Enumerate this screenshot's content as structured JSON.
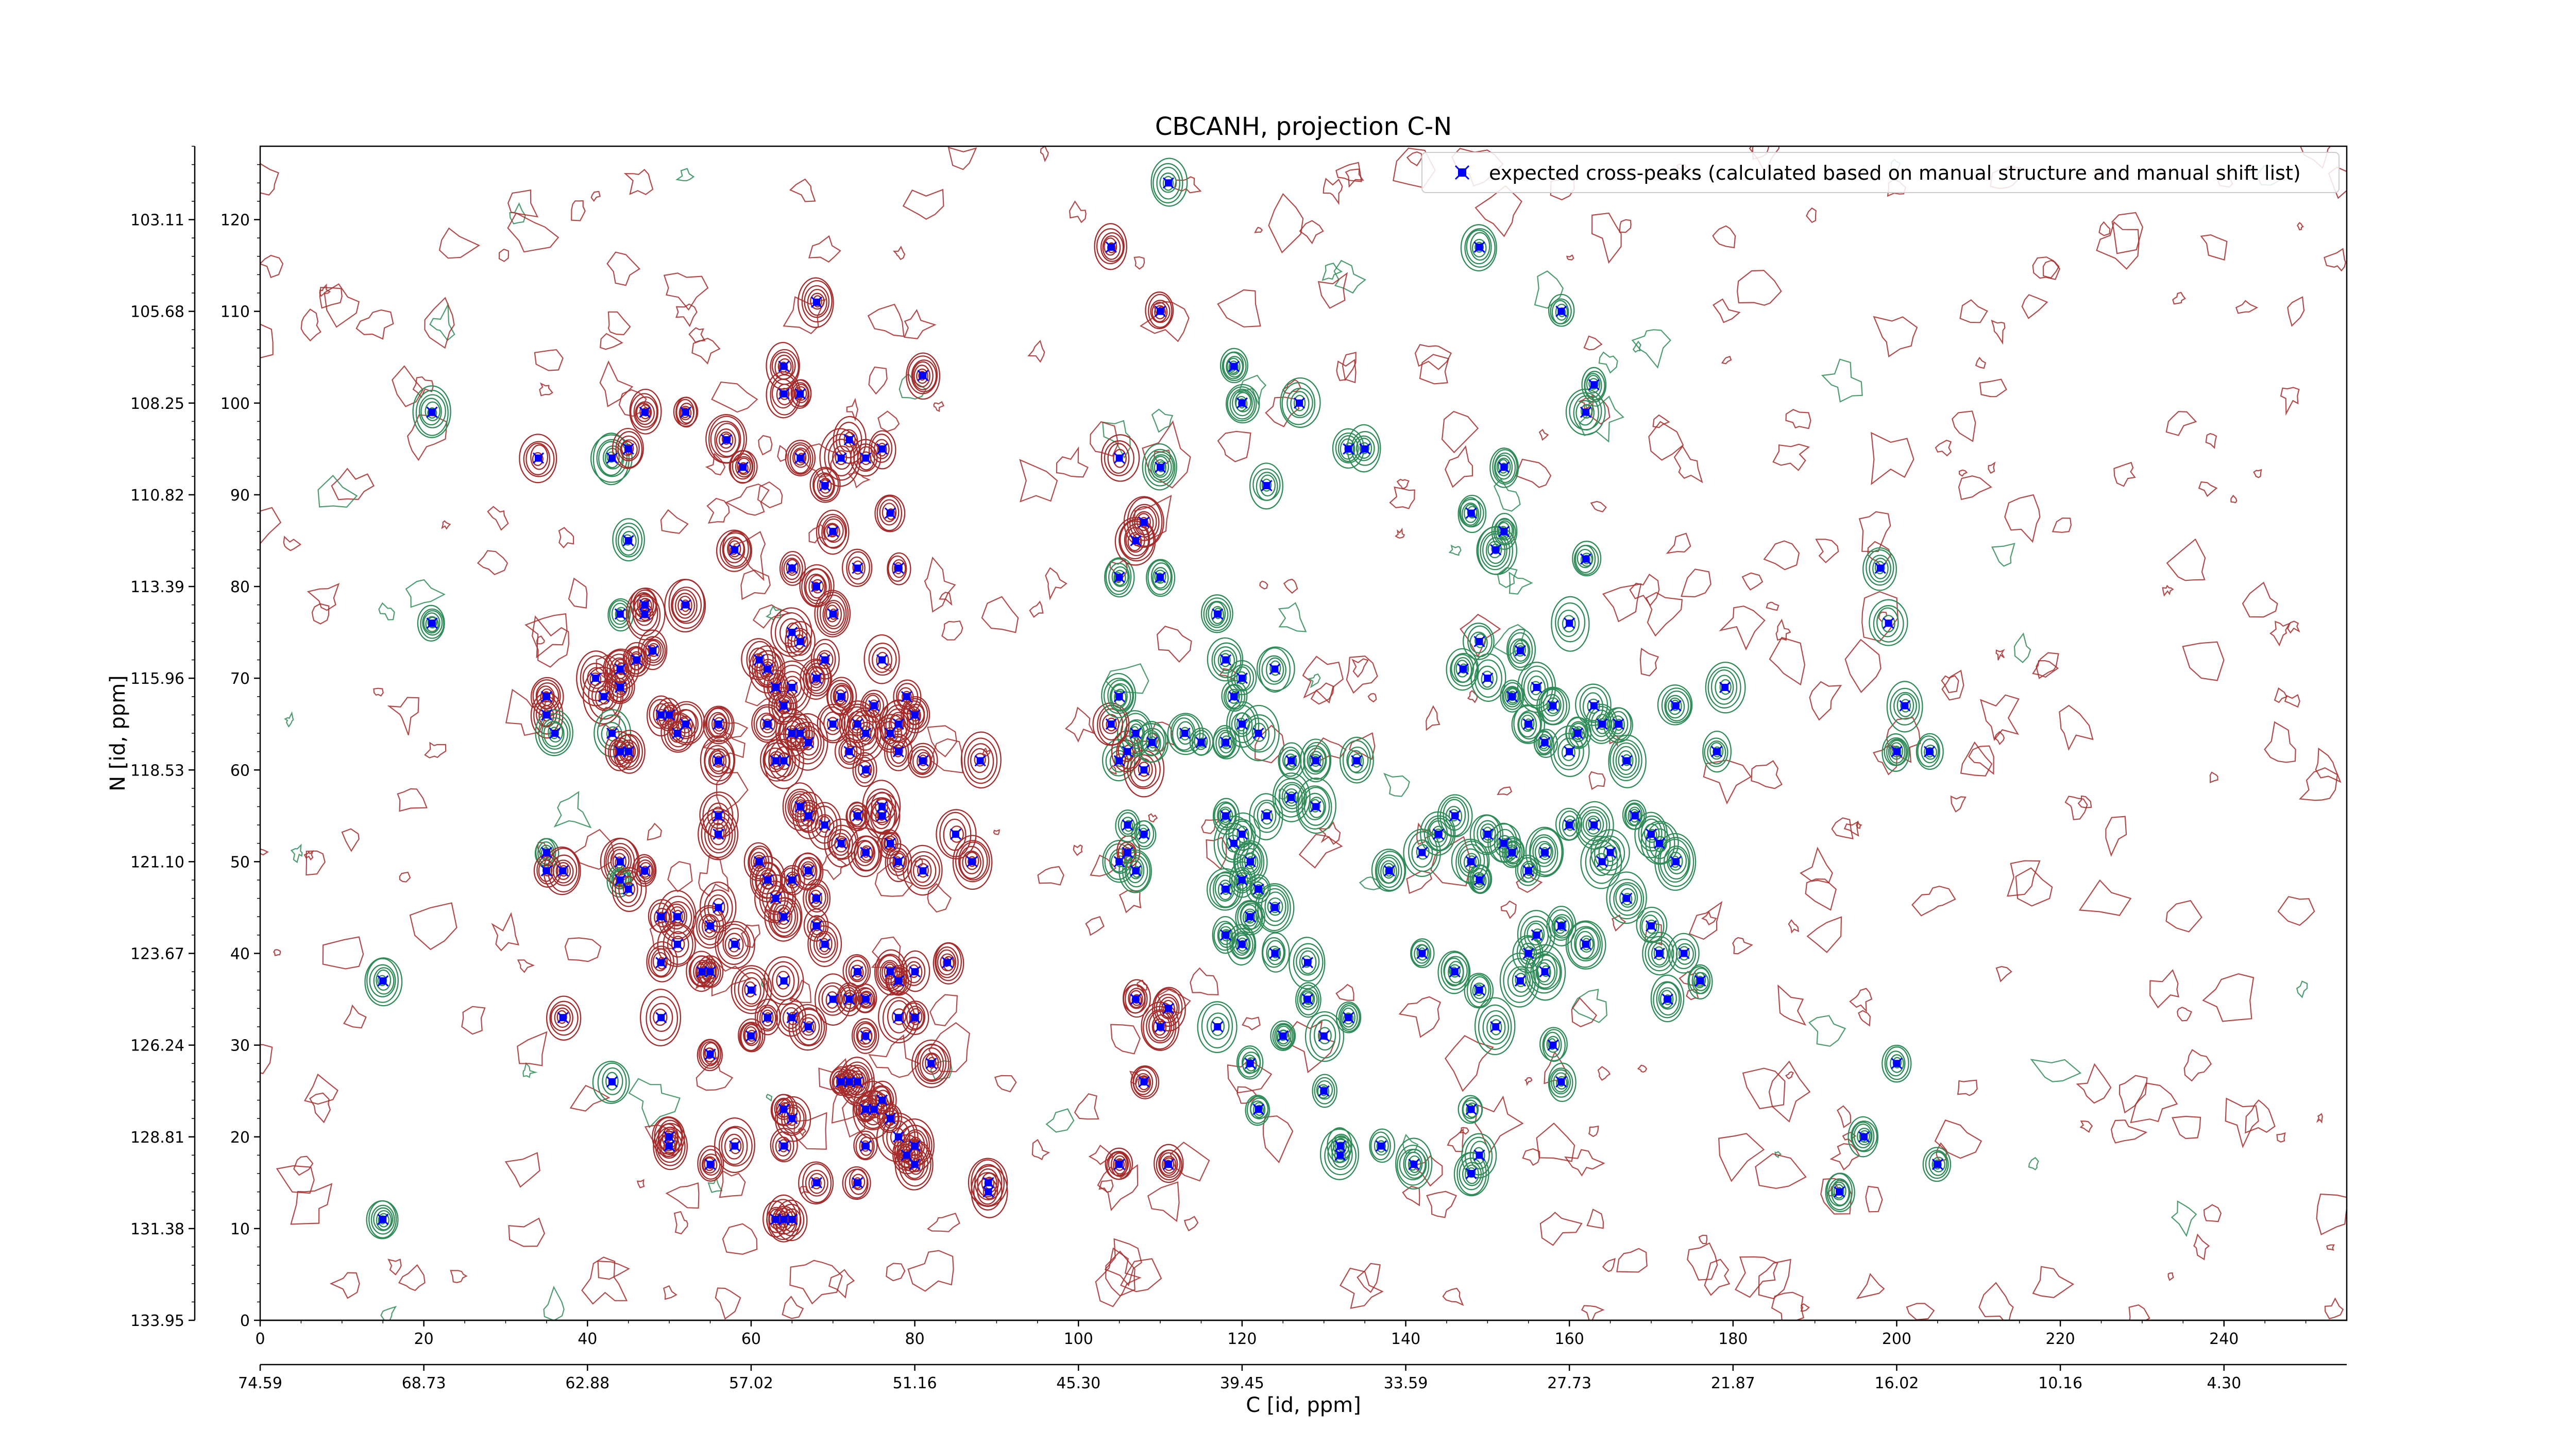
{
  "chart_data": {
    "type": "scatter",
    "title": "CBCANH, projection C-N",
    "xlabel": "C [id, ppm]",
    "ylabel": "N [id, ppm]",
    "grid": false,
    "legend_placement": "top-right",
    "x_index_ticks": [
      "0",
      "20",
      "40",
      "60",
      "80",
      "100",
      "120",
      "140",
      "160",
      "180",
      "200",
      "220",
      "240"
    ],
    "x_ppm_ticks": [
      "74.59",
      "68.73",
      "62.88",
      "57.02",
      "51.16",
      "45.30",
      "39.45",
      "33.59",
      "27.73",
      "21.87",
      "16.02",
      "10.16",
      "4.30"
    ],
    "y_index_ticks": [
      "0",
      "10",
      "20",
      "30",
      "40",
      "50",
      "60",
      "70",
      "80",
      "90",
      "100",
      "110",
      "120"
    ],
    "y_ppm_ticks": [
      "133.95",
      "131.38",
      "128.81",
      "126.24",
      "123.67",
      "121.10",
      "118.53",
      "115.96",
      "113.39",
      "110.82",
      "108.25",
      "105.68",
      "103.11"
    ],
    "xlim": [
      0,
      255
    ],
    "ylim": [
      0,
      128
    ],
    "contour_colors": {
      "positive": "#a52a2a",
      "negative": "#2e8b57"
    },
    "series": [
      {
        "name": "expected cross-peaks (calculated based on manual structure and manual shift list)",
        "color": "#0000ff",
        "marker": "x",
        "points": [
          [
            21,
            99
          ],
          [
            34,
            94
          ],
          [
            43,
            94
          ],
          [
            45,
            95
          ],
          [
            47,
            99
          ],
          [
            52,
            99
          ],
          [
            57,
            96
          ],
          [
            64,
            101
          ],
          [
            66,
            101
          ],
          [
            66,
            94
          ],
          [
            68,
            111
          ],
          [
            69,
            91
          ],
          [
            71,
            94
          ],
          [
            72,
            96
          ],
          [
            74,
            94
          ],
          [
            76,
            95
          ],
          [
            81,
            103
          ],
          [
            64,
            104
          ],
          [
            70,
            86
          ],
          [
            73,
            82
          ],
          [
            78,
            82
          ],
          [
            77,
            88
          ],
          [
            58,
            84
          ],
          [
            45,
            85
          ],
          [
            44,
            77
          ],
          [
            47,
            78
          ],
          [
            52,
            78
          ],
          [
            65,
            82
          ],
          [
            68,
            80
          ],
          [
            21,
            76
          ],
          [
            35,
            68
          ],
          [
            35,
            66
          ],
          [
            36,
            64
          ],
          [
            41,
            70
          ],
          [
            42,
            68
          ],
          [
            44,
            69
          ],
          [
            44,
            71
          ],
          [
            43,
            64
          ],
          [
            44,
            62
          ],
          [
            45,
            62
          ],
          [
            46,
            72
          ],
          [
            47,
            77
          ],
          [
            48,
            73
          ],
          [
            49,
            66
          ],
          [
            50,
            66
          ],
          [
            51,
            64
          ],
          [
            52,
            65
          ],
          [
            56,
            65
          ],
          [
            56,
            61
          ],
          [
            56,
            55
          ],
          [
            56,
            53
          ],
          [
            61,
            72
          ],
          [
            62,
            71
          ],
          [
            63,
            69
          ],
          [
            64,
            67
          ],
          [
            65,
            69
          ],
          [
            65,
            64
          ],
          [
            66,
            64
          ],
          [
            67,
            63
          ],
          [
            68,
            70
          ],
          [
            69,
            72
          ],
          [
            70,
            65
          ],
          [
            71,
            68
          ],
          [
            72,
            62
          ],
          [
            73,
            65
          ],
          [
            74,
            64
          ],
          [
            75,
            67
          ],
          [
            76,
            72
          ],
          [
            77,
            64
          ],
          [
            78,
            62
          ],
          [
            79,
            68
          ],
          [
            80,
            66
          ],
          [
            65,
            75
          ],
          [
            66,
            74
          ],
          [
            70,
            77
          ],
          [
            62,
            65
          ],
          [
            64,
            61
          ],
          [
            63,
            61
          ],
          [
            74,
            60
          ],
          [
            76,
            56
          ],
          [
            78,
            65
          ],
          [
            81,
            61
          ],
          [
            88,
            61
          ],
          [
            66,
            56
          ],
          [
            67,
            55
          ],
          [
            69,
            54
          ],
          [
            71,
            52
          ],
          [
            73,
            55
          ],
          [
            74,
            51
          ],
          [
            76,
            55
          ],
          [
            77,
            52
          ],
          [
            78,
            50
          ],
          [
            81,
            49
          ],
          [
            85,
            53
          ],
          [
            87,
            50
          ],
          [
            61,
            50
          ],
          [
            62,
            48
          ],
          [
            63,
            46
          ],
          [
            64,
            44
          ],
          [
            65,
            48
          ],
          [
            67,
            49
          ],
          [
            68,
            46
          ],
          [
            68,
            43
          ],
          [
            69,
            41
          ],
          [
            73,
            38
          ],
          [
            74,
            35
          ],
          [
            77,
            38
          ],
          [
            78,
            37
          ],
          [
            80,
            38
          ],
          [
            84,
            39
          ],
          [
            35,
            51
          ],
          [
            35,
            49
          ],
          [
            37,
            49
          ],
          [
            44,
            50
          ],
          [
            44,
            48
          ],
          [
            45,
            47
          ],
          [
            47,
            49
          ],
          [
            49,
            44
          ],
          [
            51,
            44
          ],
          [
            49,
            39
          ],
          [
            51,
            41
          ],
          [
            54,
            38
          ],
          [
            55,
            43
          ],
          [
            56,
            45
          ],
          [
            58,
            41
          ],
          [
            55,
            38
          ],
          [
            60,
            36
          ],
          [
            62,
            33
          ],
          [
            64,
            37
          ],
          [
            65,
            33
          ],
          [
            67,
            32
          ],
          [
            70,
            35
          ],
          [
            72,
            35
          ],
          [
            74,
            31
          ],
          [
            78,
            33
          ],
          [
            80,
            33
          ],
          [
            82,
            28
          ],
          [
            37,
            33
          ],
          [
            43,
            26
          ],
          [
            49,
            33
          ],
          [
            55,
            29
          ],
          [
            60,
            31
          ],
          [
            64,
            23
          ],
          [
            65,
            22
          ],
          [
            71,
            26
          ],
          [
            72,
            26
          ],
          [
            73,
            26
          ],
          [
            74,
            23
          ],
          [
            75,
            23
          ],
          [
            76,
            24
          ],
          [
            77,
            22
          ],
          [
            78,
            20
          ],
          [
            80,
            19
          ],
          [
            50,
            20
          ],
          [
            50,
            19
          ],
          [
            55,
            17
          ],
          [
            58,
            19
          ],
          [
            64,
            19
          ],
          [
            68,
            15
          ],
          [
            73,
            15
          ],
          [
            74,
            19
          ],
          [
            79,
            18
          ],
          [
            80,
            17
          ],
          [
            89,
            15
          ],
          [
            89,
            14
          ],
          [
            15,
            11
          ],
          [
            15,
            37
          ],
          [
            63,
            11
          ],
          [
            64,
            11
          ],
          [
            65,
            11
          ],
          [
            59,
            93
          ],
          [
            104,
            117
          ],
          [
            111,
            124
          ],
          [
            110,
            110
          ],
          [
            105,
            94
          ],
          [
            110,
            93
          ],
          [
            108,
            87
          ],
          [
            105,
            81
          ],
          [
            110,
            81
          ],
          [
            107,
            85
          ],
          [
            105,
            61
          ],
          [
            106,
            62
          ],
          [
            108,
            60
          ],
          [
            107,
            64
          ],
          [
            109,
            63
          ],
          [
            105,
            50
          ],
          [
            106,
            51
          ],
          [
            107,
            49
          ],
          [
            106,
            54
          ],
          [
            108,
            53
          ],
          [
            104,
            65
          ],
          [
            105,
            68
          ],
          [
            105,
            17
          ],
          [
            108,
            26
          ],
          [
            111,
            17
          ],
          [
            111,
            34
          ],
          [
            107,
            35
          ],
          [
            110,
            32
          ],
          [
            120,
            70
          ],
          [
            118,
            72
          ],
          [
            117,
            77
          ],
          [
            124,
            71
          ],
          [
            119,
            68
          ],
          [
            120,
            65
          ],
          [
            122,
            64
          ],
          [
            126,
            61
          ],
          [
            129,
            61
          ],
          [
            134,
            61
          ],
          [
            113,
            64
          ],
          [
            115,
            63
          ],
          [
            118,
            63
          ],
          [
            118,
            55
          ],
          [
            119,
            52
          ],
          [
            120,
            53
          ],
          [
            121,
            50
          ],
          [
            120,
            48
          ],
          [
            123,
            55
          ],
          [
            126,
            57
          ],
          [
            129,
            56
          ],
          [
            118,
            47
          ],
          [
            122,
            47
          ],
          [
            124,
            45
          ],
          [
            121,
            44
          ],
          [
            118,
            42
          ],
          [
            120,
            41
          ],
          [
            124,
            40
          ],
          [
            128,
            39
          ],
          [
            128,
            35
          ],
          [
            130,
            31
          ],
          [
            133,
            33
          ],
          [
            117,
            32
          ],
          [
            121,
            28
          ],
          [
            125,
            31
          ],
          [
            122,
            23
          ],
          [
            130,
            25
          ],
          [
            132,
            19
          ],
          [
            132,
            18
          ],
          [
            141,
            17
          ],
          [
            137,
            19
          ],
          [
            127,
            100
          ],
          [
            123,
            91
          ],
          [
            133,
            95
          ],
          [
            135,
            95
          ],
          [
            119,
            104
          ],
          [
            120,
            100
          ],
          [
            149,
            18
          ],
          [
            148,
            23
          ],
          [
            148,
            16
          ],
          [
            142,
            40
          ],
          [
            146,
            38
          ],
          [
            149,
            36
          ],
          [
            151,
            32
          ],
          [
            154,
            37
          ],
          [
            155,
            40
          ],
          [
            156,
            42
          ],
          [
            157,
            38
          ],
          [
            159,
            43
          ],
          [
            162,
            41
          ],
          [
            158,
            30
          ],
          [
            159,
            26
          ],
          [
            147,
            71
          ],
          [
            149,
            74
          ],
          [
            150,
            70
          ],
          [
            153,
            68
          ],
          [
            154,
            73
          ],
          [
            155,
            65
          ],
          [
            156,
            69
          ],
          [
            157,
            63
          ],
          [
            158,
            67
          ],
          [
            160,
            62
          ],
          [
            161,
            64
          ],
          [
            163,
            67
          ],
          [
            164,
            65
          ],
          [
            166,
            65
          ],
          [
            167,
            61
          ],
          [
            160,
            76
          ],
          [
            162,
            83
          ],
          [
            162,
            99
          ],
          [
            163,
            102
          ],
          [
            159,
            110
          ],
          [
            152,
            93
          ],
          [
            148,
            88
          ],
          [
            151,
            84
          ],
          [
            149,
            117
          ],
          [
            152,
            86
          ],
          [
            138,
            49
          ],
          [
            142,
            51
          ],
          [
            144,
            53
          ],
          [
            146,
            55
          ],
          [
            148,
            50
          ],
          [
            149,
            48
          ],
          [
            150,
            53
          ],
          [
            152,
            52
          ],
          [
            153,
            51
          ],
          [
            155,
            49
          ],
          [
            157,
            51
          ],
          [
            160,
            54
          ],
          [
            163,
            54
          ],
          [
            164,
            50
          ],
          [
            165,
            51
          ],
          [
            168,
            55
          ],
          [
            170,
            53
          ],
          [
            171,
            52
          ],
          [
            173,
            50
          ],
          [
            167,
            46
          ],
          [
            170,
            43
          ],
          [
            171,
            40
          ],
          [
            174,
            40
          ],
          [
            172,
            35
          ],
          [
            176,
            37
          ],
          [
            178,
            62
          ],
          [
            173,
            67
          ],
          [
            179,
            69
          ],
          [
            199,
            76
          ],
          [
            200,
            62
          ],
          [
            201,
            67
          ],
          [
            204,
            62
          ],
          [
            198,
            82
          ],
          [
            196,
            20
          ],
          [
            200,
            28
          ],
          [
            205,
            17
          ],
          [
            193,
            14
          ]
        ]
      }
    ]
  }
}
